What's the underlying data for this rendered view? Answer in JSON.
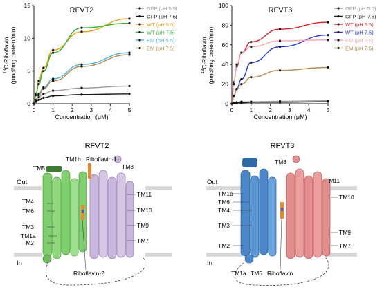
{
  "chart_data": [
    {
      "type": "line",
      "title": "RFVT2",
      "xlabel": "Concentration (μM)",
      "ylabel_sup": "13",
      "ylabel_main": "C-Riboflavin",
      "ylabel_line2": "(pmol/mg protein/min)",
      "xlim": [
        0,
        5
      ],
      "ylim": [
        0,
        15
      ],
      "x_ticks": [
        0,
        1,
        2,
        3,
        4,
        5
      ],
      "y_ticks": [
        0,
        5,
        10,
        15
      ],
      "grid": false,
      "legend_position": "right",
      "x": [
        0,
        0.1,
        0.25,
        0.5,
        1.0,
        2.5,
        5.0
      ],
      "series": [
        {
          "name": "GFP (pH 5.5)",
          "color": "#9a9a9a",
          "values": [
            0,
            0.5,
            1.0,
            1.5,
            2.0,
            2.4,
            2.7
          ]
        },
        {
          "name": "GFP (pH 7.5)",
          "color": "#1a1a1a",
          "values": [
            0,
            0.3,
            0.6,
            0.9,
            1.2,
            1.4,
            1.5
          ]
        },
        {
          "name": "WT (pH 5.5)",
          "color": "#f39c12",
          "values": [
            0,
            1.5,
            3.5,
            5.5,
            8.2,
            11.0,
            13.0
          ]
        },
        {
          "name": "WT (pH 7.5)",
          "color": "#2eb82e",
          "values": [
            0,
            1.3,
            3.0,
            5.0,
            7.8,
            11.6,
            12.3
          ]
        },
        {
          "name": "EM (pH 5.5)",
          "color": "#4fb3e0",
          "values": [
            0,
            0.6,
            1.5,
            2.5,
            3.8,
            6.0,
            7.8
          ]
        },
        {
          "name": "EM (pH 7.5)",
          "color": "#b58a4c",
          "values": [
            0,
            0.5,
            1.3,
            2.3,
            3.5,
            5.7,
            7.5
          ]
        }
      ]
    },
    {
      "type": "line",
      "title": "RFVT3",
      "xlabel": "Concentration (μM)",
      "ylabel_sup": "13",
      "ylabel_main": "C-Riboflavin",
      "ylabel_line2": "(pmol/mg protein/min)",
      "xlim": [
        0,
        5
      ],
      "ylim": [
        0,
        100
      ],
      "x_ticks": [
        0,
        1,
        2,
        3,
        4,
        5
      ],
      "y_ticks": [
        0,
        20,
        40,
        60,
        80,
        100
      ],
      "grid": false,
      "legend_position": "right",
      "x": [
        0,
        0.1,
        0.25,
        0.5,
        1.0,
        2.5,
        5.0
      ],
      "series": [
        {
          "name": "GFP (pH 5.5)",
          "color": "#9a9a9a",
          "values": [
            0,
            1,
            1.5,
            2,
            2,
            2.5,
            3
          ]
        },
        {
          "name": "GFP (pH 7.5)",
          "color": "#1a1a1a",
          "values": [
            0,
            0.5,
            1,
            1,
            1.5,
            1.5,
            2
          ]
        },
        {
          "name": "WT (pH 5.5)",
          "color": "#d4232b",
          "values": [
            0,
            22,
            38,
            52,
            63,
            76,
            83
          ]
        },
        {
          "name": "WT (pH 7.5)",
          "color": "#2233e0",
          "values": [
            0,
            8,
            15,
            25,
            42,
            58,
            70
          ]
        },
        {
          "name": "EM (pH 5.5)",
          "color": "#f4a6b4",
          "values": [
            0,
            20,
            40,
            52,
            58,
            64,
            65
          ]
        },
        {
          "name": "EM (pH 7.5)",
          "color": "#b58a4c",
          "values": [
            0,
            8,
            15,
            20,
            27,
            34,
            37
          ]
        }
      ]
    }
  ],
  "structures": [
    {
      "title": "RFVT2",
      "out_label": "Out",
      "in_label": "In",
      "helix_colors": {
        "left": "#7fcf6e",
        "right": "#c9b6dd"
      },
      "labels": [
        "TM1b",
        "TM5",
        "Riboflavin-1",
        "TM8",
        "TM11",
        "TM4",
        "TM6",
        "TM10",
        "TM9",
        "TM3",
        "TM1a",
        "TM2",
        "TM7",
        "Riboflavin-2"
      ]
    },
    {
      "title": "RFVT3",
      "out_label": "Out",
      "in_label": "In",
      "helix_colors": {
        "left": "#4a86c8",
        "right": "#e58c8c"
      },
      "labels": [
        "TM8",
        "TM11",
        "TM1b",
        "TM6",
        "TM4",
        "TM10",
        "TM3",
        "TM9",
        "TM2",
        "TM7",
        "TM1a",
        "TM5",
        "Riboflavin"
      ]
    }
  ]
}
